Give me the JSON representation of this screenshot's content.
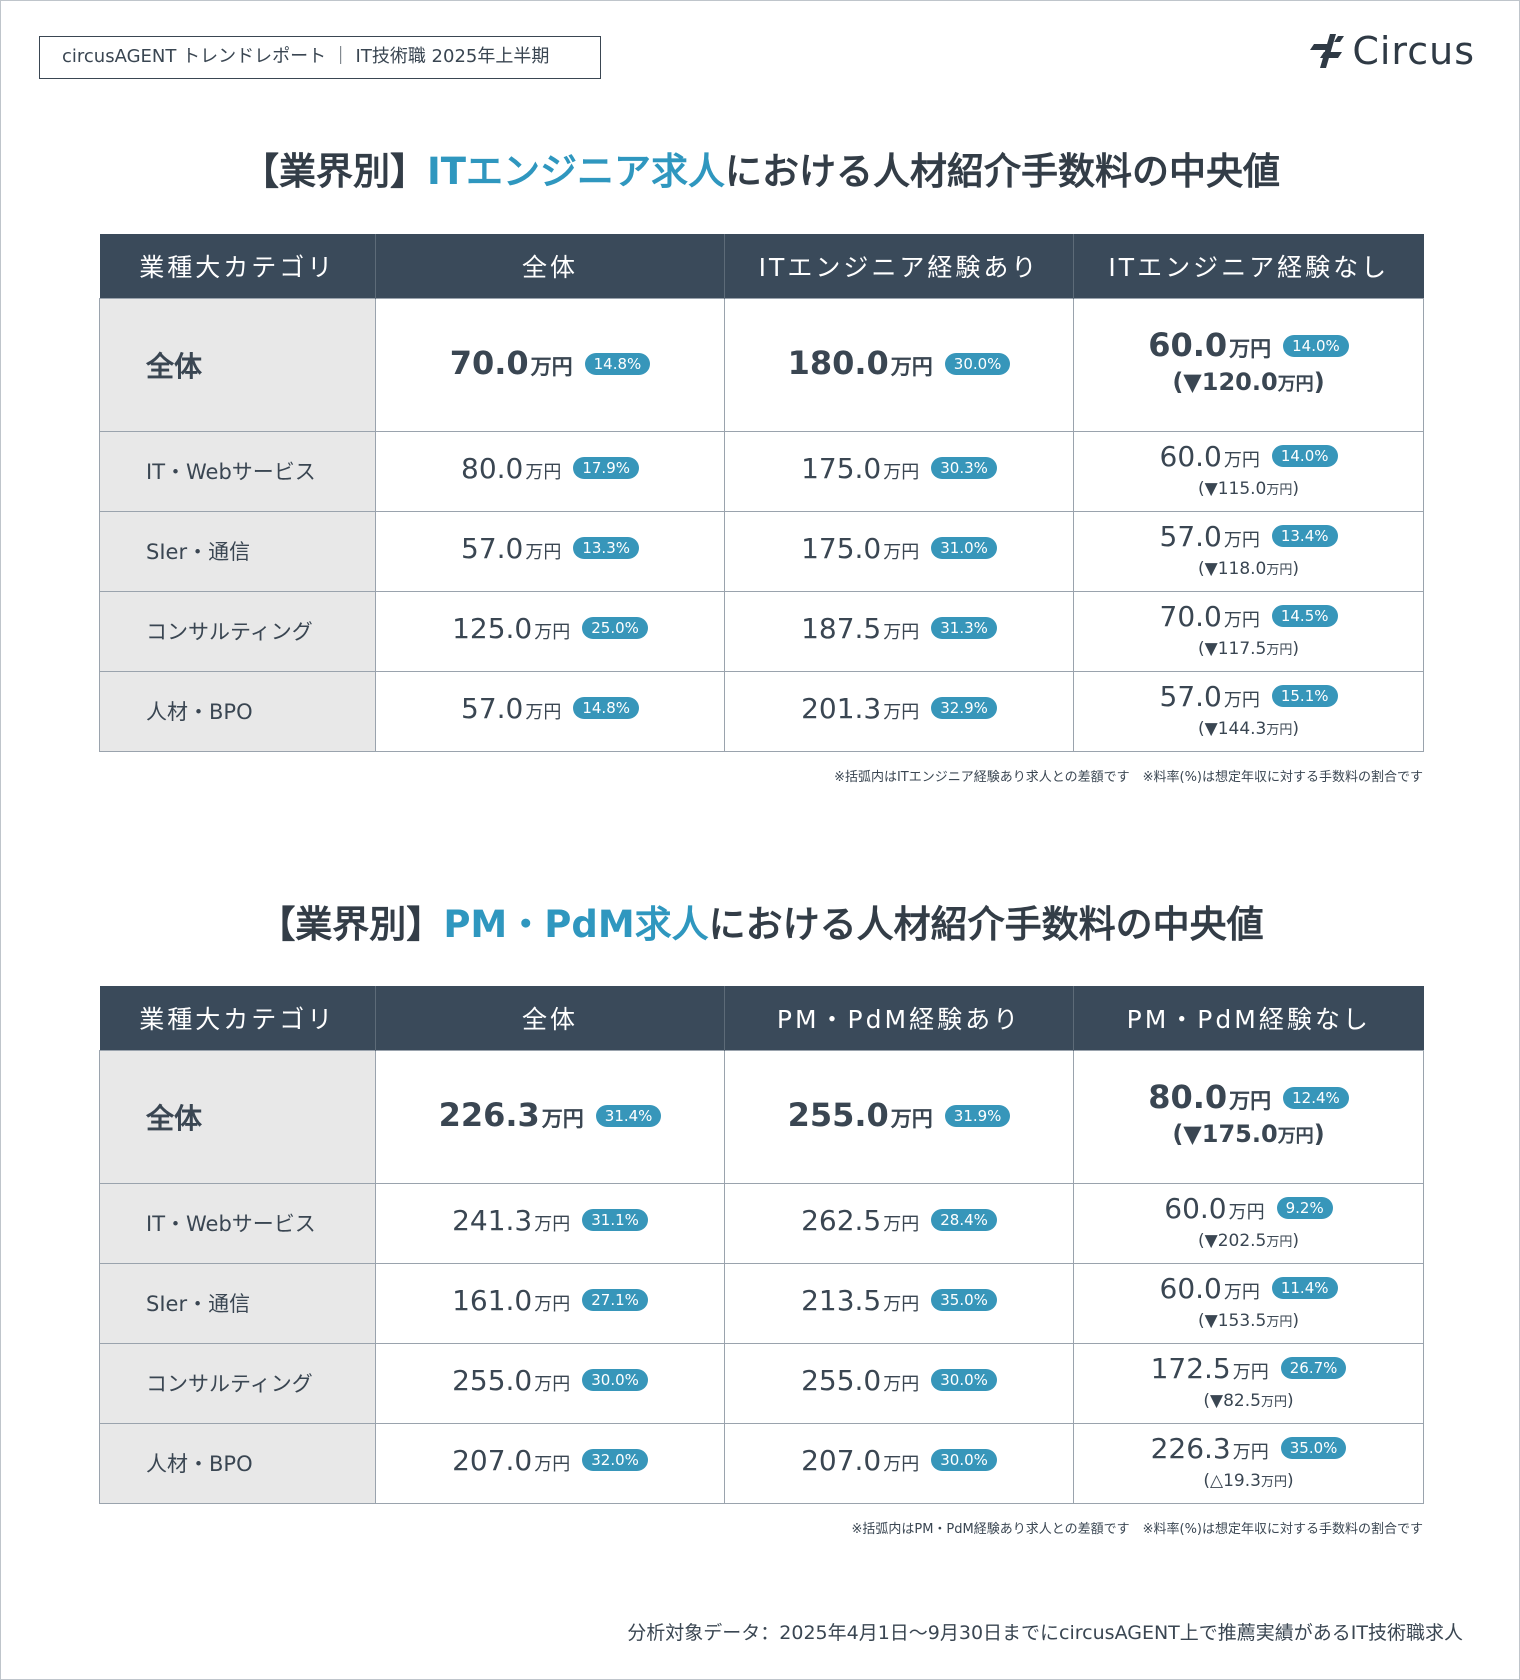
{
  "header": {
    "report_label": "circusAGENT トレンドレポート ｜ IT技術職 2025年上半期",
    "logo_text": "Circus",
    "logo_icon": "circus-mark-icon"
  },
  "sections": [
    {
      "title_prefix": "【業界別】",
      "title_highlight": "ITエンジニア求人",
      "title_suffix": "における人材紹介手数料の中央値",
      "columns": [
        "業種大カテゴリ",
        "全体",
        "ITエンジニア経験あり",
        "ITエンジニア経験なし"
      ],
      "rows": [
        {
          "category": "全体",
          "all": {
            "value": "70.0",
            "unit": "万円",
            "pct": "14.8%"
          },
          "exp": {
            "value": "180.0",
            "unit": "万円",
            "pct": "30.0%"
          },
          "noexp": {
            "value": "60.0",
            "unit": "万円",
            "pct": "14.0%",
            "diff_open": "(",
            "diff_sym": "▼",
            "diff_val": "120.0",
            "diff_unit": "万円",
            "diff_close": ")"
          }
        },
        {
          "category": "IT・Webサービス",
          "all": {
            "value": "80.0",
            "unit": "万円",
            "pct": "17.9%"
          },
          "exp": {
            "value": "175.0",
            "unit": "万円",
            "pct": "30.3%"
          },
          "noexp": {
            "value": "60.0",
            "unit": "万円",
            "pct": "14.0%",
            "diff_open": "(",
            "diff_sym": "▼",
            "diff_val": "115.0",
            "diff_unit": "万円",
            "diff_close": ")"
          }
        },
        {
          "category": "SIer・通信",
          "all": {
            "value": "57.0",
            "unit": "万円",
            "pct": "13.3%"
          },
          "exp": {
            "value": "175.0",
            "unit": "万円",
            "pct": "31.0%"
          },
          "noexp": {
            "value": "57.0",
            "unit": "万円",
            "pct": "13.4%",
            "diff_open": "(",
            "diff_sym": "▼",
            "diff_val": "118.0",
            "diff_unit": "万円",
            "diff_close": ")"
          }
        },
        {
          "category": "コンサルティング",
          "all": {
            "value": "125.0",
            "unit": "万円",
            "pct": "25.0%"
          },
          "exp": {
            "value": "187.5",
            "unit": "万円",
            "pct": "31.3%"
          },
          "noexp": {
            "value": "70.0",
            "unit": "万円",
            "pct": "14.5%",
            "diff_open": "(",
            "diff_sym": "▼",
            "diff_val": "117.5",
            "diff_unit": "万円",
            "diff_close": ")"
          }
        },
        {
          "category": "人材・BPO",
          "all": {
            "value": "57.0",
            "unit": "万円",
            "pct": "14.8%"
          },
          "exp": {
            "value": "201.3",
            "unit": "万円",
            "pct": "32.9%"
          },
          "noexp": {
            "value": "57.0",
            "unit": "万円",
            "pct": "15.1%",
            "diff_open": "(",
            "diff_sym": "▼",
            "diff_val": "144.3",
            "diff_unit": "万円",
            "diff_close": ")"
          }
        }
      ],
      "note": "※括弧内はITエンジニア経験あり求人との差額です　※料率(%)は想定年収に対する手数料の割合です"
    },
    {
      "title_prefix": "【業界別】",
      "title_highlight": "PM・PdM求人",
      "title_suffix": "における人材紹介手数料の中央値",
      "columns": [
        "業種大カテゴリ",
        "全体",
        "PM・PdM経験あり",
        "PM・PdM経験なし"
      ],
      "rows": [
        {
          "category": "全体",
          "all": {
            "value": "226.3",
            "unit": "万円",
            "pct": "31.4%"
          },
          "exp": {
            "value": "255.0",
            "unit": "万円",
            "pct": "31.9%"
          },
          "noexp": {
            "value": "80.0",
            "unit": "万円",
            "pct": "12.4%",
            "diff_open": "(",
            "diff_sym": "▼",
            "diff_val": "175.0",
            "diff_unit": "万円",
            "diff_close": ")"
          }
        },
        {
          "category": "IT・Webサービス",
          "all": {
            "value": "241.3",
            "unit": "万円",
            "pct": "31.1%"
          },
          "exp": {
            "value": "262.5",
            "unit": "万円",
            "pct": "28.4%"
          },
          "noexp": {
            "value": "60.0",
            "unit": "万円",
            "pct": "9.2%",
            "diff_open": "(",
            "diff_sym": "▼",
            "diff_val": "202.5",
            "diff_unit": "万円",
            "diff_close": ")"
          }
        },
        {
          "category": "SIer・通信",
          "all": {
            "value": "161.0",
            "unit": "万円",
            "pct": "27.1%"
          },
          "exp": {
            "value": "213.5",
            "unit": "万円",
            "pct": "35.0%"
          },
          "noexp": {
            "value": "60.0",
            "unit": "万円",
            "pct": "11.4%",
            "diff_open": "(",
            "diff_sym": "▼",
            "diff_val": "153.5",
            "diff_unit": "万円",
            "diff_close": ")"
          }
        },
        {
          "category": "コンサルティング",
          "all": {
            "value": "255.0",
            "unit": "万円",
            "pct": "30.0%"
          },
          "exp": {
            "value": "255.0",
            "unit": "万円",
            "pct": "30.0%"
          },
          "noexp": {
            "value": "172.5",
            "unit": "万円",
            "pct": "26.7%",
            "diff_open": "(",
            "diff_sym": "▼",
            "diff_val": "82.5",
            "diff_unit": "万円",
            "diff_close": ")"
          }
        },
        {
          "category": "人材・BPO",
          "all": {
            "value": "207.0",
            "unit": "万円",
            "pct": "32.0%"
          },
          "exp": {
            "value": "207.0",
            "unit": "万円",
            "pct": "30.0%"
          },
          "noexp": {
            "value": "226.3",
            "unit": "万円",
            "pct": "35.0%",
            "diff_open": "(",
            "diff_sym": "△",
            "diff_val": "19.3",
            "diff_unit": "万円",
            "diff_close": ")"
          }
        }
      ],
      "note": "※括弧内はPM・PdM経験あり求人との差額です　※料率(%)は想定年収に対する手数料の割合です"
    }
  ],
  "footer": "分析対象データ：2025年4月1日〜9月30日までにcircusAGENT上で推薦実績があるIT技術職求人",
  "colors": {
    "header_bg": "#3a4a5a",
    "accent": "#2f97bf",
    "badge": "#3796ba",
    "category_bg": "#e8e8e8"
  }
}
